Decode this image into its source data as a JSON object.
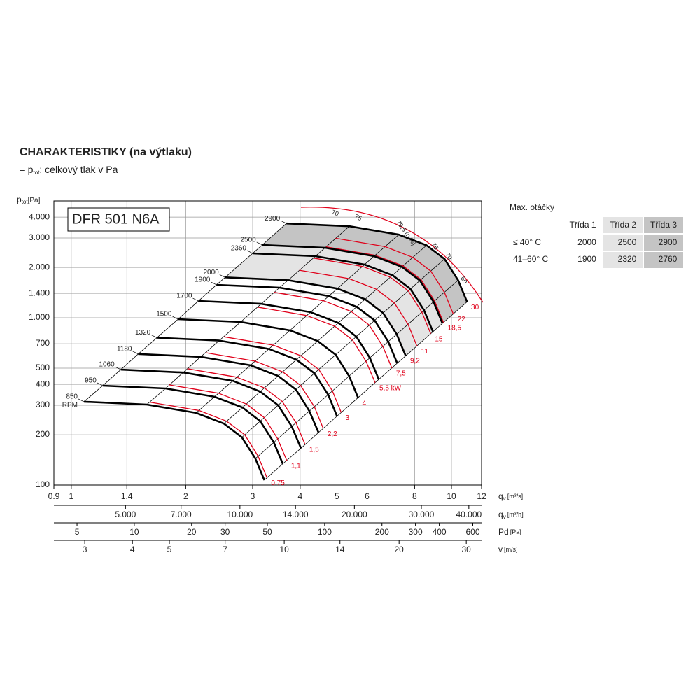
{
  "chart_data": {
    "type": "line",
    "title": "CHARAKTERISTIKY (na výtlaku)",
    "subtitle_prefix": "– p",
    "subtitle_sub": "tot",
    "subtitle_rest": ": celkový tlak v Pa",
    "model": "DFR 501 N6A",
    "y_label": "p",
    "y_label_sub": "tot",
    "y_unit": "[Pa]",
    "log_scale": true,
    "grid": true,
    "ylim": [
      100,
      5000
    ],
    "yticks": [
      100,
      200,
      300,
      400,
      500,
      700,
      {
        "value": 1000,
        "label": "1.000"
      },
      {
        "value": 1400,
        "label": "1.400"
      },
      {
        "value": 2000,
        "label": "2.000"
      },
      {
        "value": 3000,
        "label": "3.000"
      },
      {
        "value": 4000,
        "label": "4.000"
      }
    ],
    "x_label": "q",
    "x_label_sub": "v",
    "x_unit": "[m³/s]",
    "xlim": [
      0.9,
      12
    ],
    "xticks": [
      0.9,
      1,
      1.4,
      2,
      3,
      4,
      5,
      6,
      8,
      10,
      12
    ],
    "x2_axes": [
      {
        "label": "q",
        "label_sub": "v",
        "unit": "[m³/h]",
        "lim": [
          3240,
          43200
        ],
        "ticks": [
          {
            "value": 5000,
            "label": "5.000"
          },
          {
            "value": 7000,
            "label": "7.000"
          },
          {
            "value": 10000,
            "label": "10.000"
          },
          {
            "value": 14000,
            "label": "14.000"
          },
          {
            "value": 20000,
            "label": "20.000"
          },
          {
            "value": 30000,
            "label": "30.000"
          },
          {
            "value": 40000,
            "label": "40.000"
          }
        ]
      },
      {
        "label": "Pd",
        "unit": "[Pa]",
        "lim": [
          3.78,
          667
        ],
        "ticks": [
          5,
          10,
          20,
          30,
          50,
          100,
          200,
          300,
          400,
          600
        ]
      },
      {
        "label": "v",
        "unit": "[m/s]",
        "lim": [
          2.49,
          32.9
        ],
        "ticks": [
          3,
          4,
          5,
          7,
          10,
          14,
          20,
          30
        ]
      }
    ],
    "rpm_unit": "RPM",
    "series": [
      {
        "name": "850",
        "color": "#000000",
        "x": [
          1.08,
          1.58,
          2.13,
          2.52,
          2.81,
          3.05,
          3.22
        ],
        "values": [
          315,
          303,
          270,
          233,
          193,
          144,
          107
        ]
      },
      {
        "name": "950",
        "color": "#000000",
        "x": [
          1.21,
          1.77,
          2.38,
          2.82,
          3.14,
          3.41,
          3.6
        ],
        "values": [
          393,
          378,
          337,
          291,
          241,
          180,
          134
        ]
      },
      {
        "name": "1060",
        "color": "#000000",
        "x": [
          1.35,
          1.97,
          2.66,
          3.14,
          3.5,
          3.8,
          4.02
        ],
        "values": [
          490,
          471,
          420,
          362,
          300,
          224,
          166
        ]
      },
      {
        "name": "1180",
        "color": "#000000",
        "x": [
          1.5,
          2.19,
          2.96,
          3.5,
          3.9,
          4.23,
          4.47
        ],
        "values": [
          607,
          584,
          520,
          449,
          372,
          277,
          206
        ]
      },
      {
        "name": "1320",
        "color": "#000000",
        "x": [
          1.68,
          2.45,
          3.31,
          3.91,
          4.36,
          4.74,
          5.0
        ],
        "values": [
          760,
          731,
          651,
          562,
          466,
          347,
          258
        ]
      },
      {
        "name": "1500",
        "color": "#000000",
        "x": [
          1.91,
          2.79,
          3.76,
          4.45,
          4.96,
          5.38,
          5.68
        ],
        "values": [
          981,
          944,
          841,
          726,
          601,
          448,
          333
        ]
      },
      {
        "name": "1700",
        "color": "#000000",
        "x": [
          2.16,
          3.16,
          4.26,
          5.04,
          5.62,
          6.1,
          6.44
        ],
        "values": [
          1260,
          1212,
          1080,
          932,
          772,
          576,
          428
        ]
      },
      {
        "name": "1900",
        "color": "#000000",
        "x": [
          2.41,
          3.53,
          4.76,
          5.63,
          6.28,
          6.82,
          7.2
        ],
        "values": [
          1574,
          1514,
          1349,
          1164,
          964,
          720,
          535
        ]
      },
      {
        "name": "2000",
        "color": "#000000",
        "x": [
          2.54,
          3.72,
          5.01,
          5.93,
          6.61,
          7.18,
          7.58
        ],
        "values": [
          1744,
          1677,
          1495,
          1290,
          1068,
          797,
          592
        ]
      },
      {
        "name": "2360",
        "color": "#000000",
        "x": [
          3.0,
          4.39,
          5.91,
          7.0,
          7.8,
          8.47,
          8.94
        ],
        "values": [
          2428,
          2336,
          2081,
          1796,
          1488,
          1110,
          825
        ]
      },
      {
        "name": "2500",
        "color": "#000000",
        "x": [
          3.18,
          4.65,
          6.26,
          7.41,
          8.26,
          8.97,
          9.47
        ],
        "values": [
          2725,
          2621,
          2336,
          2016,
          1670,
          1246,
          926
        ]
      },
      {
        "name": "2900",
        "color": "#000000",
        "x": [
          3.68,
          5.39,
          7.27,
          8.6,
          9.59,
          10.41,
          10.99
        ],
        "values": [
          3667,
          3527,
          3143,
          2712,
          2247,
          1676,
          1245
        ]
      }
    ],
    "power_curves": [
      {
        "name": "0,75",
        "color": "#e0001a",
        "x": [
          1.61,
          2.17,
          2.56,
          2.86,
          3.1,
          3.27
        ],
        "values": [
          313,
          279,
          241,
          200,
          149,
          111
        ]
      },
      {
        "name": "1,1",
        "color": "#e0001a",
        "x": [
          1.81,
          2.44,
          2.89,
          3.22,
          3.49,
          3.69
        ],
        "values": [
          397,
          354,
          305,
          253,
          189,
          140
        ]
      },
      {
        "name": "1,5",
        "color": "#e0001a",
        "x": [
          2.02,
          2.72,
          3.22,
          3.59,
          3.9,
          4.12
        ],
        "values": [
          496,
          442,
          381,
          316,
          236,
          175
        ]
      },
      {
        "name": "2,2",
        "color": "#e0001a",
        "x": [
          2.26,
          3.04,
          3.6,
          4.01,
          4.36,
          4.6
        ],
        "values": [
          618,
          551,
          475,
          394,
          294,
          218
        ]
      },
      {
        "name": "3",
        "color": "#e0001a",
        "x": [
          2.52,
          3.4,
          4.02,
          4.48,
          4.86,
          5.13
        ],
        "values": [
          770,
          686,
          592,
          490,
          366,
          272
        ]
      },
      {
        "name": "4",
        "color": "#e0001a",
        "x": [
          2.79,
          3.76,
          4.45,
          4.96,
          5.38,
          5.68
        ],
        "values": [
          944,
          841,
          726,
          601,
          449,
          333
        ]
      },
      {
        "name": "5,5 kW",
        "color": "#e0001a",
        "x": [
          3.09,
          4.16,
          4.93,
          5.49,
          5.96,
          6.3
        ],
        "values": [
          1158,
          1032,
          891,
          738,
          550,
          409
        ]
      },
      {
        "name": "7,5",
        "color": "#e0001a",
        "x": [
          3.42,
          4.61,
          5.45,
          6.08,
          6.6,
          6.97
        ],
        "values": [
          1419,
          1264,
          1091,
          904,
          674,
          501
        ]
      },
      {
        "name": "9,2",
        "color": "#e0001a",
        "x": [
          3.72,
          5.02,
          5.94,
          6.62,
          7.19,
          7.59
        ],
        "values": [
          1682,
          1499,
          1293,
          1071,
          799,
          594
        ]
      },
      {
        "name": "11",
        "color": "#e0001a",
        "x": [
          3.98,
          5.37,
          6.35,
          7.08,
          7.69,
          8.11
        ],
        "values": [
          1924,
          1715,
          1480,
          1226,
          914,
          679
        ]
      },
      {
        "name": "15",
        "color": "#e0001a",
        "x": [
          4.33,
          5.84,
          6.9,
          7.7,
          8.36,
          8.82
        ],
        "values": [
          2275,
          2027,
          1749,
          1449,
          1081,
          803
        ]
      },
      {
        "name": "18,5",
        "color": "#e0001a",
        "x": [
          4.68,
          6.3,
          7.46,
          8.32,
          9.03,
          9.53
        ],
        "values": [
          2655,
          2366,
          2042,
          1691,
          1262,
          938
        ]
      },
      {
        "name": "22",
        "color": "#e0001a",
        "x": [
          4.96,
          6.69,
          7.91,
          8.82,
          9.58,
          10.11
        ],
        "values": [
          2988,
          2662,
          2297,
          1903,
          1420,
          1055
        ]
      },
      {
        "name": "30",
        "color": "#e0001a",
        "x": [
          5.39,
          7.26,
          8.59,
          9.58,
          10.4,
          10.98
        ],
        "values": [
          3524,
          3140,
          2710,
          2245,
          1675,
          1244
        ]
      }
    ],
    "efficiency_labels": [
      "70",
      "75",
      "79,5 (η %)",
      "75",
      "70",
      "60"
    ]
  },
  "table": {
    "title": "Max. otáčky",
    "headers": [
      "Třída 1",
      "Třída 2",
      "Třída 3"
    ],
    "rows": [
      {
        "label": "≤ 40° C",
        "values": [
          2000,
          2500,
          2900
        ]
      },
      {
        "label": "41–60° C",
        "values": [
          1900,
          2320,
          2760
        ]
      }
    ]
  }
}
